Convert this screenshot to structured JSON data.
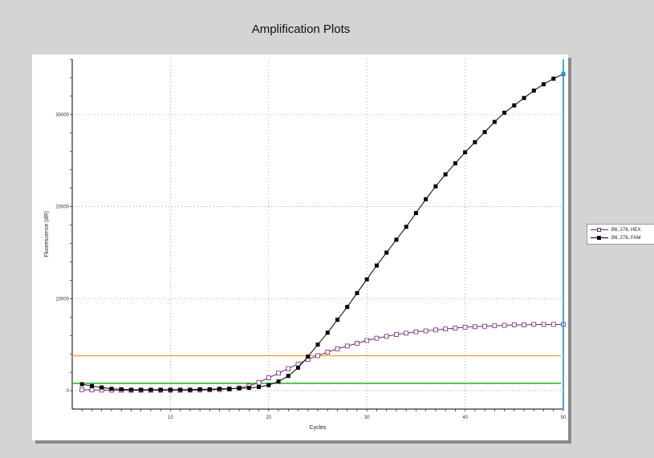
{
  "chart_data": {
    "type": "line",
    "title": "Amplification Plots",
    "xlabel": "Cycles",
    "ylabel": "Fluorescence (dR)",
    "xlim": [
      0,
      50
    ],
    "ylim": [
      -2000,
      36000
    ],
    "x_ticks": [
      10,
      20,
      30,
      40,
      50
    ],
    "y_ticks": [
      0,
      10000,
      20000,
      30000
    ],
    "grid": true,
    "legend_position": "right-outside",
    "series": [
      {
        "name": "B6, 278, HEX",
        "color": "#6e2a6e",
        "marker": "hollow-square",
        "x": [
          1,
          2,
          3,
          4,
          5,
          6,
          7,
          8,
          9,
          10,
          11,
          12,
          13,
          14,
          15,
          16,
          17,
          18,
          19,
          20,
          21,
          22,
          23,
          24,
          25,
          26,
          27,
          28,
          29,
          30,
          31,
          32,
          33,
          34,
          35,
          36,
          37,
          38,
          39,
          40,
          41,
          42,
          43,
          44,
          45,
          46,
          47,
          48,
          49,
          50
        ],
        "values": [
          100,
          80,
          60,
          50,
          40,
          40,
          40,
          40,
          40,
          40,
          40,
          50,
          60,
          80,
          120,
          180,
          300,
          500,
          900,
          1400,
          1900,
          2400,
          2900,
          3400,
          3800,
          4200,
          4550,
          4850,
          5150,
          5450,
          5700,
          5900,
          6100,
          6250,
          6400,
          6500,
          6600,
          6700,
          6800,
          6900,
          6950,
          7000,
          7050,
          7100,
          7150,
          7150,
          7200,
          7200,
          7200,
          7200
        ]
      },
      {
        "name": "B6, 278, FAM",
        "color": "#000000",
        "marker": "filled-square",
        "x": [
          1,
          2,
          3,
          4,
          5,
          6,
          7,
          8,
          9,
          10,
          11,
          12,
          13,
          14,
          15,
          16,
          17,
          18,
          19,
          20,
          21,
          22,
          23,
          24,
          25,
          26,
          27,
          28,
          29,
          30,
          31,
          32,
          33,
          34,
          35,
          36,
          37,
          38,
          39,
          40,
          41,
          42,
          43,
          44,
          45,
          46,
          47,
          48,
          49,
          50
        ],
        "values": [
          700,
          500,
          350,
          200,
          150,
          100,
          100,
          100,
          100,
          100,
          100,
          100,
          150,
          150,
          200,
          200,
          250,
          300,
          400,
          600,
          1000,
          1600,
          2500,
          3700,
          5000,
          6300,
          7700,
          9100,
          10600,
          12100,
          13600,
          15000,
          16400,
          17800,
          19300,
          20800,
          22200,
          23500,
          24700,
          25900,
          27000,
          28100,
          29200,
          30200,
          31000,
          31800,
          32600,
          33300,
          33900,
          34400
        ]
      }
    ],
    "threshold_lines": [
      {
        "value": 3800,
        "color": "#f0a020"
      },
      {
        "value": 800,
        "color": "#22b022"
      }
    ],
    "cursor_line": {
      "x": 50,
      "color": "#1e90d0"
    }
  }
}
